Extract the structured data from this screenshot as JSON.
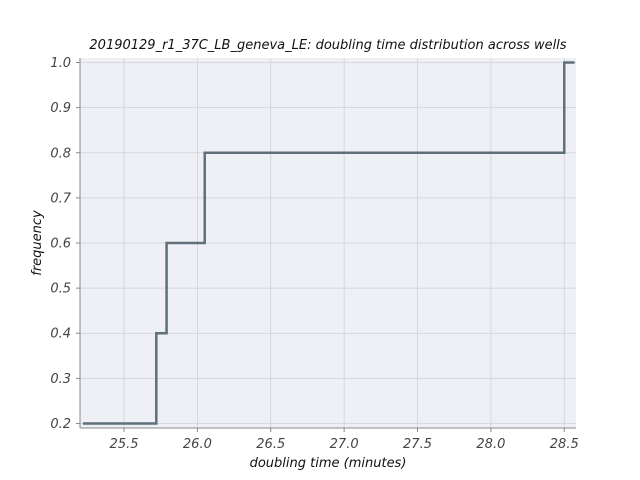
{
  "chart_data": {
    "type": "line",
    "step": "post",
    "title": "20190129_r1_37C_LB_geneva_LE: doubling time distribution across wells",
    "xlabel": "doubling time (minutes)",
    "ylabel": "frequency",
    "xlim": [
      25.2,
      28.58
    ],
    "ylim": [
      0.19,
      1.01
    ],
    "xticks": [
      25.5,
      26.0,
      26.5,
      27.0,
      27.5,
      28.0,
      28.5
    ],
    "xtick_labels": [
      "25.5",
      "26.0",
      "26.5",
      "27.0",
      "27.5",
      "28.0",
      "28.5"
    ],
    "yticks": [
      0.2,
      0.3,
      0.4,
      0.5,
      0.6,
      0.7,
      0.8,
      0.9,
      1.0
    ],
    "ytick_labels": [
      "0.2",
      "0.3",
      "0.4",
      "0.5",
      "0.6",
      "0.7",
      "0.8",
      "0.9",
      "1.0"
    ],
    "grid": true,
    "series": [
      {
        "x": [
          25.22,
          25.72,
          25.79,
          26.05,
          28.5,
          28.57
        ],
        "y": [
          0.2,
          0.4,
          0.6,
          0.8,
          1.0,
          1.0
        ]
      }
    ],
    "colors": {
      "line": "#5f707b",
      "plot_background": "#eff0f5",
      "grid": "#cfd1d8",
      "axis": "#888888"
    }
  }
}
